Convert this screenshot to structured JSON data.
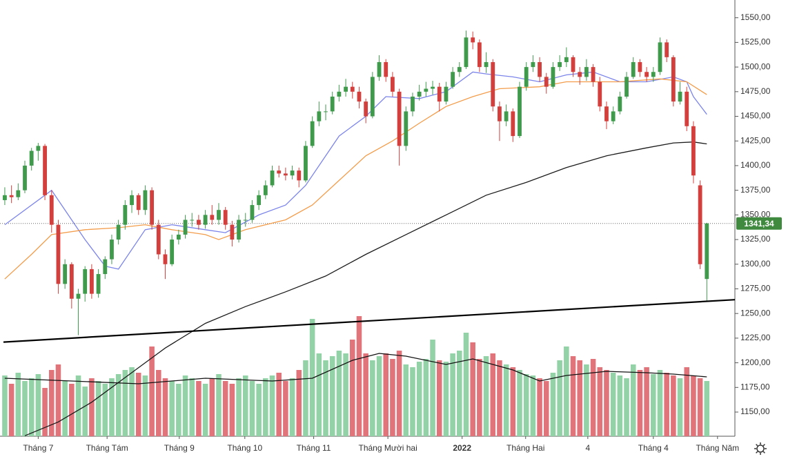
{
  "chart_data": {
    "type": "candlestick",
    "up_color": "#3f9a4c",
    "down_color": "#d23f3c",
    "volume_up_color": "#92d2a6",
    "volume_down_color": "#e0747a",
    "xlim": [
      -0.2,
      109.2
    ],
    "ylim": [
      1125.5,
      1568
    ],
    "xticks": [
      {
        "value": 5,
        "label": "Tháng 7"
      },
      {
        "value": 15.3,
        "label": "Tháng Tám"
      },
      {
        "value": 26.1,
        "label": "Tháng 9"
      },
      {
        "value": 35.9,
        "label": "Tháng 10"
      },
      {
        "value": 46.2,
        "label": "Tháng 11"
      },
      {
        "value": 57.3,
        "label": "Tháng Mười hai"
      },
      {
        "value": 68.4,
        "label": "2022"
      },
      {
        "value": 77.9,
        "label": "Tháng Hai"
      },
      {
        "value": 87.2,
        "label": "4"
      },
      {
        "value": 97,
        "label": "Tháng 4"
      },
      {
        "value": 106.6,
        "label": "Tháng Năm"
      }
    ],
    "yticks": [
      {
        "value": 1150,
        "label": "1150,00"
      },
      {
        "value": 1175,
        "label": "1175,00"
      },
      {
        "value": 1200,
        "label": "1200,00"
      },
      {
        "value": 1225,
        "label": "1225,00"
      },
      {
        "value": 1250,
        "label": "1250,00"
      },
      {
        "value": 1275,
        "label": "1275,00"
      },
      {
        "value": 1300,
        "label": "1300,00"
      },
      {
        "value": 1325,
        "label": "1325,00"
      },
      {
        "value": 1350,
        "label": "1350,00"
      },
      {
        "value": 1375,
        "label": "1375,00"
      },
      {
        "value": 1400,
        "label": "1400,00"
      },
      {
        "value": 1425,
        "label": "1425,00"
      },
      {
        "value": 1450,
        "label": "1450,00"
      },
      {
        "value": 1475,
        "label": "1475,00"
      },
      {
        "value": 1500,
        "label": "1500,00"
      },
      {
        "value": 1525,
        "label": "1525,00"
      },
      {
        "value": 1550,
        "label": "1550,00"
      }
    ],
    "last_price": {
      "value": 1341.34,
      "label": "1341,34",
      "color": "#3f8a3f"
    },
    "candles": [
      [
        1365,
        1378,
        1360,
        1370
      ],
      [
        1370,
        1380,
        1362,
        1368
      ],
      [
        1368,
        1382,
        1365,
        1375
      ],
      [
        1375,
        1405,
        1372,
        1400
      ],
      [
        1400,
        1418,
        1395,
        1415
      ],
      [
        1415,
        1423,
        1405,
        1420
      ],
      [
        1420,
        1422,
        1365,
        1370
      ],
      [
        1370,
        1375,
        1332,
        1340
      ],
      [
        1340,
        1345,
        1270,
        1280
      ],
      [
        1280,
        1305,
        1275,
        1300
      ],
      [
        1300,
        1302,
        1255,
        1265
      ],
      [
        1265,
        1275,
        1228,
        1270
      ],
      [
        1270,
        1298,
        1262,
        1295
      ],
      [
        1295,
        1300,
        1265,
        1270
      ],
      [
        1270,
        1295,
        1266,
        1290
      ],
      [
        1290,
        1308,
        1285,
        1305
      ],
      [
        1305,
        1330,
        1300,
        1325
      ],
      [
        1325,
        1345,
        1320,
        1340
      ],
      [
        1340,
        1365,
        1335,
        1360
      ],
      [
        1360,
        1375,
        1352,
        1370
      ],
      [
        1370,
        1372,
        1350,
        1355
      ],
      [
        1355,
        1380,
        1350,
        1375
      ],
      [
        1375,
        1378,
        1335,
        1340
      ],
      [
        1340,
        1345,
        1305,
        1310
      ],
      [
        1310,
        1315,
        1285,
        1300
      ],
      [
        1300,
        1330,
        1298,
        1325
      ],
      [
        1325,
        1335,
        1320,
        1330
      ],
      [
        1330,
        1350,
        1326,
        1345
      ],
      [
        1345,
        1352,
        1338,
        1345
      ],
      [
        1345,
        1350,
        1335,
        1340
      ],
      [
        1340,
        1355,
        1336,
        1350
      ],
      [
        1350,
        1360,
        1340,
        1345
      ],
      [
        1345,
        1362,
        1340,
        1355
      ],
      [
        1355,
        1358,
        1335,
        1340
      ],
      [
        1340,
        1344,
        1318,
        1325
      ],
      [
        1325,
        1350,
        1322,
        1345
      ],
      [
        1345,
        1352,
        1338,
        1345
      ],
      [
        1345,
        1365,
        1342,
        1360
      ],
      [
        1360,
        1375,
        1355,
        1370
      ],
      [
        1370,
        1385,
        1366,
        1380
      ],
      [
        1380,
        1400,
        1378,
        1395
      ],
      [
        1395,
        1400,
        1388,
        1392
      ],
      [
        1392,
        1398,
        1385,
        1390
      ],
      [
        1390,
        1400,
        1386,
        1395
      ],
      [
        1395,
        1398,
        1378,
        1385
      ],
      [
        1385,
        1425,
        1383,
        1420
      ],
      [
        1420,
        1450,
        1418,
        1445
      ],
      [
        1445,
        1465,
        1440,
        1455
      ],
      [
        1455,
        1462,
        1446,
        1455
      ],
      [
        1455,
        1475,
        1452,
        1470
      ],
      [
        1470,
        1482,
        1465,
        1475
      ],
      [
        1475,
        1488,
        1470,
        1480
      ],
      [
        1480,
        1485,
        1468,
        1475
      ],
      [
        1475,
        1480,
        1458,
        1465
      ],
      [
        1465,
        1468,
        1443,
        1450
      ],
      [
        1450,
        1495,
        1448,
        1490
      ],
      [
        1490,
        1512,
        1486,
        1505
      ],
      [
        1505,
        1508,
        1485,
        1490
      ],
      [
        1490,
        1495,
        1470,
        1475
      ],
      [
        1475,
        1478,
        1400,
        1420
      ],
      [
        1420,
        1460,
        1415,
        1455
      ],
      [
        1455,
        1474,
        1450,
        1470
      ],
      [
        1470,
        1482,
        1466,
        1475
      ],
      [
        1475,
        1485,
        1470,
        1478
      ],
      [
        1478,
        1486,
        1472,
        1480
      ],
      [
        1480,
        1484,
        1455,
        1465
      ],
      [
        1465,
        1485,
        1462,
        1480
      ],
      [
        1480,
        1500,
        1478,
        1495
      ],
      [
        1495,
        1505,
        1490,
        1500
      ],
      [
        1500,
        1537,
        1498,
        1530
      ],
      [
        1530,
        1536,
        1518,
        1525
      ],
      [
        1525,
        1528,
        1495,
        1500
      ],
      [
        1500,
        1515,
        1494,
        1505
      ],
      [
        1505,
        1508,
        1455,
        1460
      ],
      [
        1460,
        1465,
        1425,
        1445
      ],
      [
        1445,
        1462,
        1440,
        1455
      ],
      [
        1455,
        1458,
        1424,
        1430
      ],
      [
        1430,
        1485,
        1428,
        1480
      ],
      [
        1480,
        1505,
        1476,
        1500
      ],
      [
        1500,
        1512,
        1495,
        1505
      ],
      [
        1505,
        1510,
        1485,
        1490
      ],
      [
        1490,
        1494,
        1473,
        1480
      ],
      [
        1480,
        1505,
        1478,
        1500
      ],
      [
        1500,
        1512,
        1496,
        1505
      ],
      [
        1505,
        1520,
        1500,
        1510
      ],
      [
        1510,
        1512,
        1490,
        1495
      ],
      [
        1495,
        1500,
        1482,
        1490
      ],
      [
        1490,
        1508,
        1486,
        1500
      ],
      [
        1500,
        1503,
        1480,
        1485
      ],
      [
        1485,
        1490,
        1455,
        1460
      ],
      [
        1460,
        1465,
        1437,
        1445
      ],
      [
        1445,
        1460,
        1442,
        1455
      ],
      [
        1455,
        1475,
        1452,
        1470
      ],
      [
        1470,
        1495,
        1468,
        1490
      ],
      [
        1490,
        1510,
        1488,
        1505
      ],
      [
        1505,
        1508,
        1490,
        1495
      ],
      [
        1495,
        1500,
        1485,
        1490
      ],
      [
        1490,
        1500,
        1485,
        1495
      ],
      [
        1495,
        1530,
        1492,
        1525
      ],
      [
        1525,
        1528,
        1505,
        1510
      ],
      [
        1510,
        1512,
        1460,
        1465
      ],
      [
        1465,
        1485,
        1462,
        1475
      ],
      [
        1475,
        1480,
        1435,
        1440
      ],
      [
        1440,
        1445,
        1382,
        1390
      ],
      [
        1380,
        1385,
        1295,
        1300
      ],
      [
        1285,
        1342,
        1262,
        1341.34
      ]
    ],
    "volume_lim": [
      0,
      100
    ],
    "volume": [
      44,
      38,
      46,
      40,
      42,
      45,
      35,
      48,
      52,
      40,
      38,
      44,
      36,
      42,
      40,
      38,
      42,
      45,
      48,
      50,
      46,
      44,
      65,
      48,
      42,
      40,
      38,
      44,
      42,
      40,
      38,
      42,
      45,
      40,
      38,
      42,
      44,
      40,
      38,
      42,
      44,
      46,
      40,
      42,
      48,
      55,
      85,
      60,
      55,
      58,
      62,
      60,
      70,
      87,
      60,
      55,
      58,
      60,
      56,
      62,
      52,
      50,
      54,
      56,
      70,
      55,
      54,
      60,
      62,
      75,
      68,
      56,
      58,
      60,
      55,
      52,
      50,
      48,
      45,
      44,
      42,
      40,
      46,
      55,
      65,
      58,
      55,
      52,
      56,
      50,
      48,
      46,
      44,
      42,
      52,
      48,
      50,
      45,
      48,
      46,
      44,
      42,
      50,
      44,
      42,
      40
    ],
    "volume_average": {
      "color": "#111111",
      "x": [
        0,
        10,
        20,
        30,
        40,
        46,
        52,
        56,
        60,
        66,
        70,
        76,
        80,
        84,
        90,
        96,
        100,
        105
      ],
      "values": [
        42,
        40,
        38,
        42,
        40,
        42,
        55,
        60,
        58,
        52,
        56,
        48,
        40,
        44,
        47,
        46,
        45,
        43
      ]
    },
    "moving_averages": [
      {
        "color": "#7b84ea",
        "x": [
          0,
          7,
          12,
          15,
          17,
          21,
          25,
          30,
          33,
          38,
          42,
          45,
          50,
          54,
          57,
          62,
          66,
          70,
          72,
          76,
          80,
          84,
          88,
          92,
          96,
          100,
          102,
          103,
          105
        ],
        "values": [
          1340,
          1375,
          1325,
          1298,
          1295,
          1335,
          1340,
          1335,
          1332,
          1350,
          1360,
          1380,
          1430,
          1450,
          1470,
          1468,
          1475,
          1495,
          1493,
          1490,
          1485,
          1492,
          1495,
          1485,
          1485,
          1490,
          1485,
          1470,
          1452
        ]
      },
      {
        "color": "#f39c4a",
        "x": [
          0,
          4,
          7,
          12,
          17,
          21,
          25,
          30,
          32,
          36,
          42,
          46,
          50,
          54,
          58,
          62,
          66,
          70,
          74,
          80,
          84,
          88,
          92,
          98,
          102,
          105
        ],
        "values": [
          1285,
          1310,
          1330,
          1335,
          1337,
          1340,
          1335,
          1330,
          1325,
          1335,
          1345,
          1360,
          1385,
          1410,
          1425,
          1443,
          1460,
          1470,
          1478,
          1480,
          1485,
          1485,
          1485,
          1488,
          1485,
          1472
        ]
      },
      {
        "color": "#1a1a1a",
        "x": [
          3,
          8,
          13,
          19,
          24,
          30,
          36,
          42,
          48,
          54,
          60,
          66,
          72,
          78,
          84,
          90,
          96,
          100,
          103,
          105
        ],
        "values": [
          1126,
          1140,
          1160,
          1190,
          1215,
          1240,
          1257,
          1272,
          1288,
          1310,
          1330,
          1350,
          1370,
          1383,
          1398,
          1410,
          1418,
          1423,
          1424,
          1422
        ]
      }
    ],
    "trendline": {
      "color": "#000000",
      "x": [
        -0.2,
        109.2
      ],
      "values": [
        1221,
        1264
      ]
    }
  }
}
